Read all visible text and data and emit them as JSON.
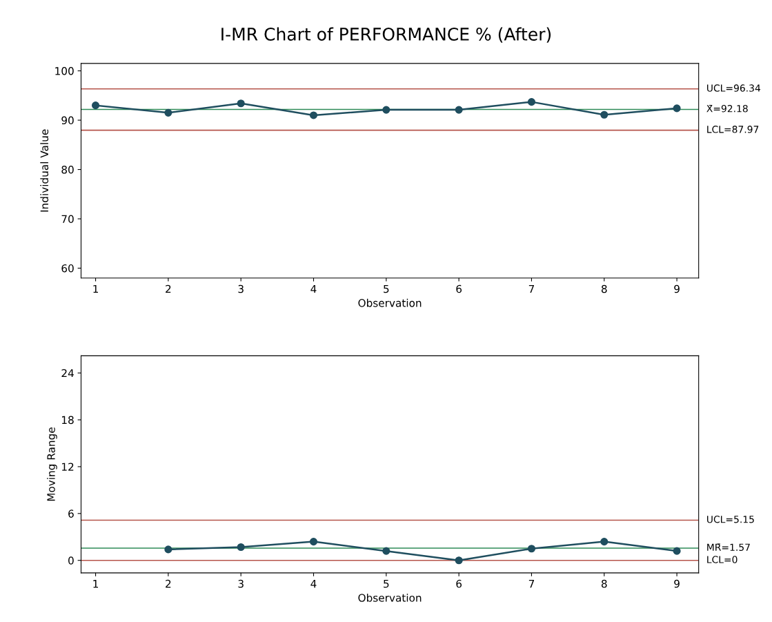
{
  "chart_data": [
    {
      "type": "line",
      "title": "I-MR Chart of PERFORMANCE % (After)",
      "xlabel": "Observation",
      "ylabel": "Individual Value",
      "x": [
        1,
        2,
        3,
        4,
        5,
        6,
        7,
        8,
        9
      ],
      "series": [
        {
          "color": "#1f4e5f",
          "values": [
            93.0,
            91.5,
            93.4,
            91.0,
            92.1,
            92.1,
            93.7,
            91.1,
            92.4
          ]
        }
      ],
      "marker": "circle",
      "line_style": "solid",
      "xlim": [
        0.8,
        9.3
      ],
      "xticks": [
        1,
        2,
        3,
        4,
        5,
        6,
        7,
        8,
        9
      ],
      "ylim": [
        58,
        101.5
      ],
      "yticks": [
        60,
        70,
        80,
        90,
        100
      ],
      "grid": false,
      "legend": false,
      "ref_lines": [
        {
          "axis": "y",
          "value": 96.34,
          "label": "UCL=96.34",
          "color": "#b5544a"
        },
        {
          "axis": "y",
          "value": 92.18,
          "label": "X̄=92.18",
          "color": "#2e8b57"
        },
        {
          "axis": "y",
          "value": 87.97,
          "label": "LCL=87.97",
          "color": "#b5544a"
        }
      ]
    },
    {
      "type": "line",
      "xlabel": "Observation",
      "ylabel": "Moving Range",
      "x": [
        2,
        3,
        4,
        5,
        6,
        7,
        8,
        9
      ],
      "series": [
        {
          "color": "#1f4e5f",
          "values": [
            1.4,
            1.7,
            2.4,
            1.2,
            0,
            1.5,
            2.4,
            1.2
          ]
        }
      ],
      "marker": "circle",
      "line_style": "solid",
      "xlim": [
        0.8,
        9.3
      ],
      "xticks": [
        1,
        2,
        3,
        4,
        5,
        6,
        7,
        8,
        9
      ],
      "ylim": [
        -1.6,
        26.2
      ],
      "yticks": [
        0,
        6,
        12,
        18,
        24
      ],
      "grid": false,
      "legend": false,
      "ref_lines": [
        {
          "axis": "y",
          "value": 5.15,
          "label": "UCL=5.15",
          "color": "#b5544a"
        },
        {
          "axis": "y",
          "value": 1.57,
          "label": "MR̄=1.57",
          "color": "#2e8b57"
        },
        {
          "axis": "y",
          "value": 0,
          "label": "LCL=0",
          "color": "#b5544a"
        }
      ]
    }
  ]
}
